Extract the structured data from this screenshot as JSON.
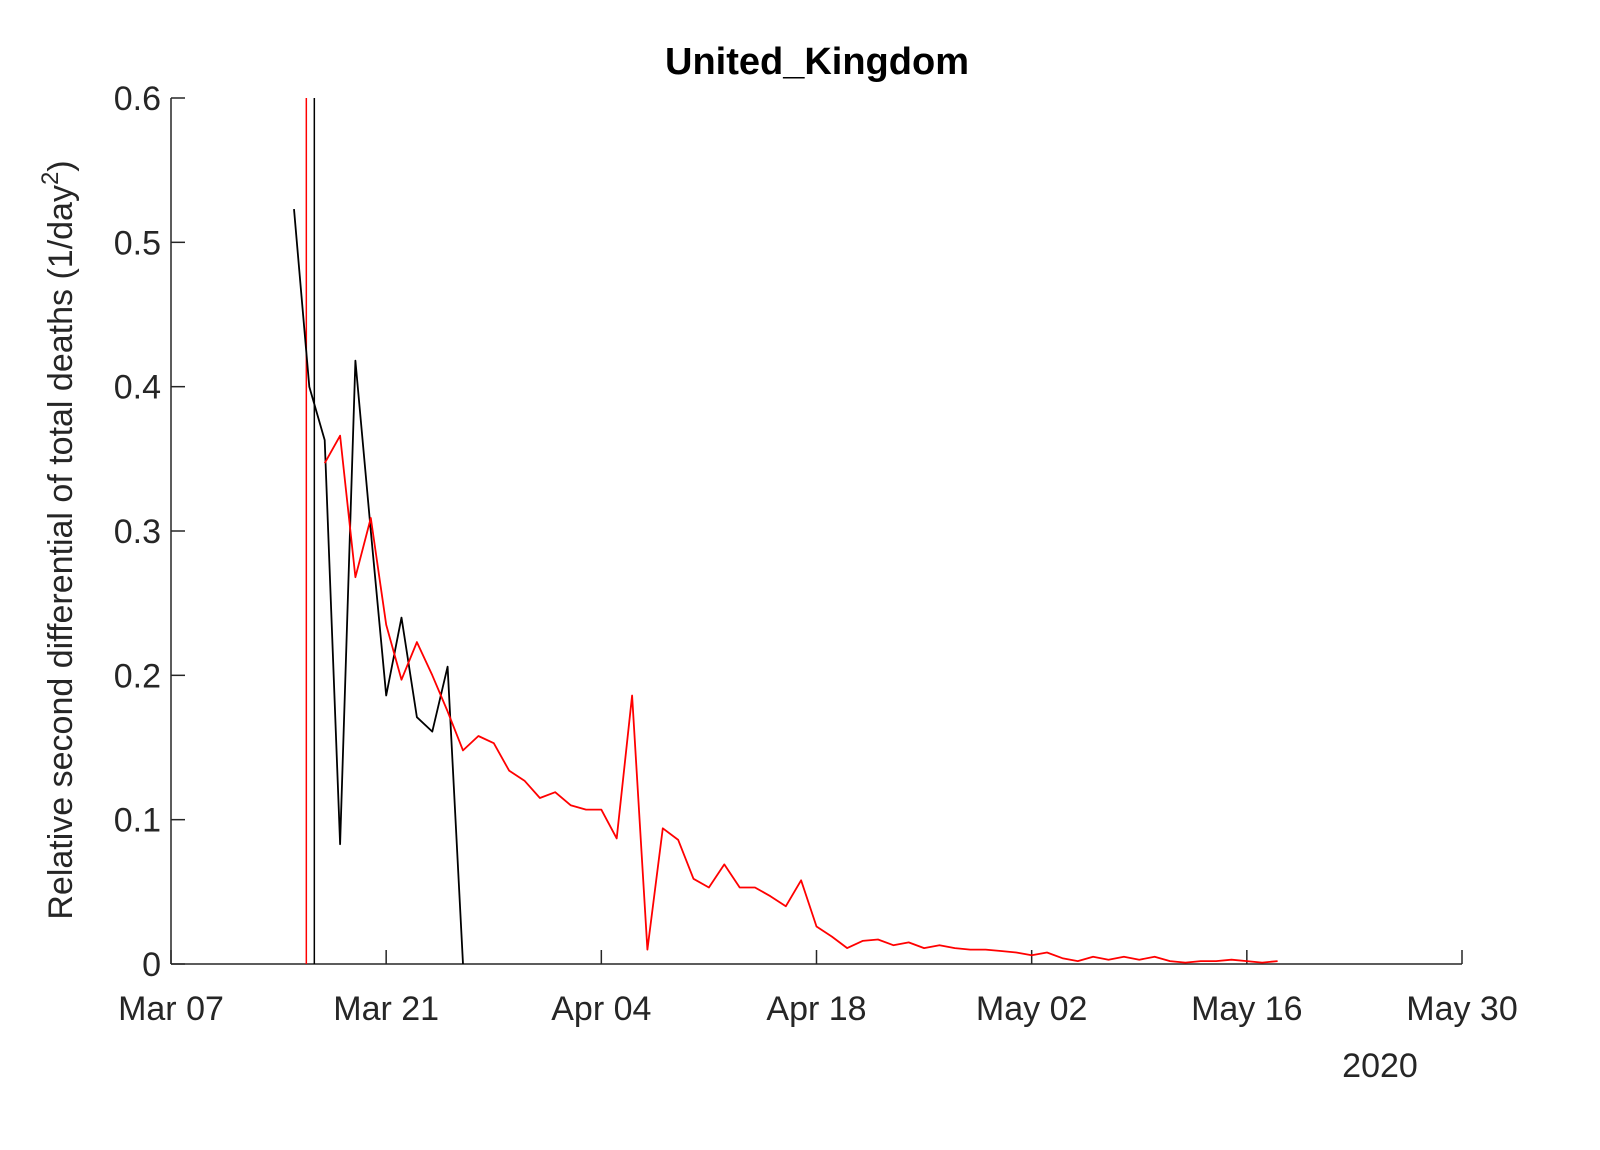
{
  "chart_data": {
    "type": "line",
    "title": "United_Kingdom",
    "ylabel_main": "Relative second differential of total deaths (1/day",
    "ylabel_exp": "2",
    "ylabel_close": ")",
    "xlabel": "",
    "year_label": "2020",
    "ylim": [
      0,
      0.6
    ],
    "yticks": [
      0,
      0.1,
      0.2,
      0.3,
      0.4,
      0.5,
      0.6
    ],
    "ytick_labels": [
      "0",
      "0.1",
      "0.2",
      "0.3",
      "0.4",
      "0.5",
      "0.6"
    ],
    "xlim": [
      "2020-03-07",
      "2020-05-30"
    ],
    "xticks": [
      "2020-03-07",
      "2020-03-21",
      "2020-04-04",
      "2020-04-18",
      "2020-05-02",
      "2020-05-16",
      "2020-05-30"
    ],
    "xtick_labels": [
      "Mar 07",
      "Mar 21",
      "Apr 04",
      "Apr 18",
      "May 02",
      "May 16",
      "May 30"
    ],
    "grid": false,
    "vertical_lines": [
      {
        "x": "2020-03-16",
        "color": "#ff0000"
      },
      {
        "x": "2020-03-16",
        "color": "#000000"
      }
    ],
    "series": [
      {
        "color": "#000000",
        "points": [
          [
            "2020-03-15",
            0.523
          ],
          [
            "2020-03-16",
            0.4
          ],
          [
            "2020-03-17",
            0.363
          ],
          [
            "2020-03-18",
            0.083
          ],
          [
            "2020-03-19",
            0.418
          ],
          [
            "2020-03-20",
            0.3
          ],
          [
            "2020-03-21",
            0.186
          ],
          [
            "2020-03-22",
            0.24
          ],
          [
            "2020-03-23",
            0.171
          ],
          [
            "2020-03-24",
            0.161
          ],
          [
            "2020-03-25",
            0.206
          ],
          [
            "2020-03-26",
            0.0
          ]
        ]
      },
      {
        "color": "#ff0000",
        "points": [
          [
            "2020-03-17",
            0.347
          ],
          [
            "2020-03-18",
            0.366
          ],
          [
            "2020-03-19",
            0.268
          ],
          [
            "2020-03-20",
            0.309
          ],
          [
            "2020-03-21",
            0.235
          ],
          [
            "2020-03-22",
            0.197
          ],
          [
            "2020-03-23",
            0.223
          ],
          [
            "2020-03-24",
            0.2
          ],
          [
            "2020-03-25",
            0.175
          ],
          [
            "2020-03-26",
            0.148
          ],
          [
            "2020-03-27",
            0.158
          ],
          [
            "2020-03-28",
            0.153
          ],
          [
            "2020-03-29",
            0.134
          ],
          [
            "2020-03-30",
            0.127
          ],
          [
            "2020-03-31",
            0.115
          ],
          [
            "2020-04-01",
            0.119
          ],
          [
            "2020-04-02",
            0.11
          ],
          [
            "2020-04-03",
            0.107
          ],
          [
            "2020-04-04",
            0.107
          ],
          [
            "2020-04-05",
            0.087
          ],
          [
            "2020-04-06",
            0.186
          ],
          [
            "2020-04-07",
            0.01
          ],
          [
            "2020-04-08",
            0.094
          ],
          [
            "2020-04-09",
            0.086
          ],
          [
            "2020-04-10",
            0.059
          ],
          [
            "2020-04-11",
            0.053
          ],
          [
            "2020-04-12",
            0.069
          ],
          [
            "2020-04-13",
            0.053
          ],
          [
            "2020-04-14",
            0.053
          ],
          [
            "2020-04-15",
            0.047
          ],
          [
            "2020-04-16",
            0.04
          ],
          [
            "2020-04-17",
            0.058
          ],
          [
            "2020-04-18",
            0.026
          ],
          [
            "2020-04-19",
            0.019
          ],
          [
            "2020-04-20",
            0.011
          ],
          [
            "2020-04-21",
            0.016
          ],
          [
            "2020-04-22",
            0.017
          ],
          [
            "2020-04-23",
            0.013
          ],
          [
            "2020-04-24",
            0.015
          ],
          [
            "2020-04-25",
            0.011
          ],
          [
            "2020-04-26",
            0.013
          ],
          [
            "2020-04-27",
            0.011
          ],
          [
            "2020-04-28",
            0.01
          ],
          [
            "2020-04-29",
            0.01
          ],
          [
            "2020-04-30",
            0.009
          ],
          [
            "2020-05-01",
            0.008
          ],
          [
            "2020-05-02",
            0.006
          ],
          [
            "2020-05-03",
            0.008
          ],
          [
            "2020-05-04",
            0.004
          ],
          [
            "2020-05-05",
            0.002
          ],
          [
            "2020-05-06",
            0.005
          ],
          [
            "2020-05-07",
            0.003
          ],
          [
            "2020-05-08",
            0.005
          ],
          [
            "2020-05-09",
            0.003
          ],
          [
            "2020-05-10",
            0.005
          ],
          [
            "2020-05-11",
            0.002
          ],
          [
            "2020-05-12",
            0.001
          ],
          [
            "2020-05-13",
            0.002
          ],
          [
            "2020-05-14",
            0.002
          ],
          [
            "2020-05-15",
            0.003
          ],
          [
            "2020-05-16",
            0.002
          ],
          [
            "2020-05-17",
            0.001
          ],
          [
            "2020-05-18",
            0.002
          ]
        ]
      }
    ]
  }
}
